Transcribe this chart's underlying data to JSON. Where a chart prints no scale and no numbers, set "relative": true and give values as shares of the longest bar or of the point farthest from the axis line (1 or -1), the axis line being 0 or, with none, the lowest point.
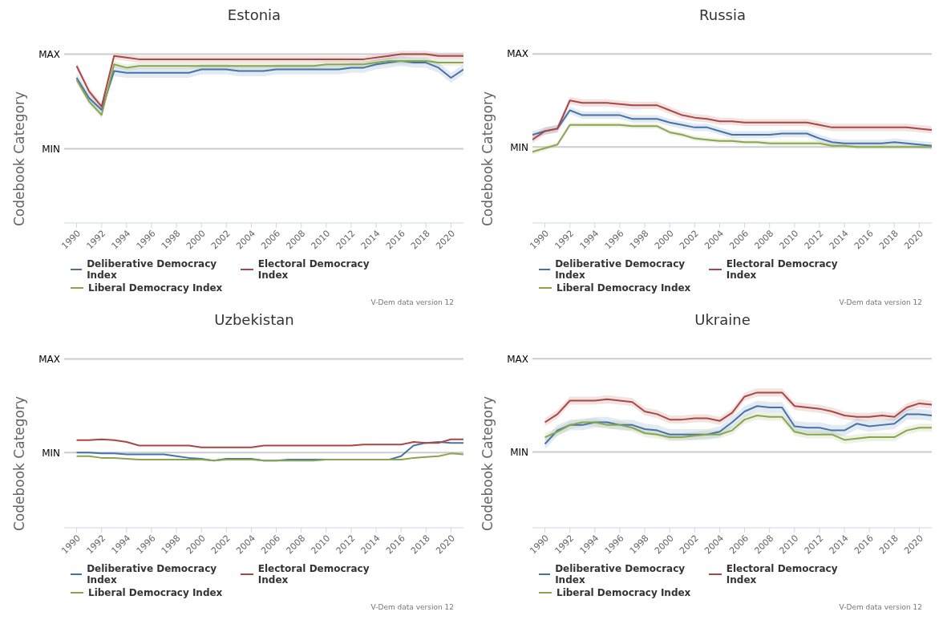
{
  "chart_data": [
    {
      "type": "line",
      "title": "Estonia",
      "ylabel": "Codebook Category",
      "legend": "bottom",
      "relative": true,
      "annotations": [
        "V-Dem data version 12"
      ],
      "xlim": [
        1989,
        2021
      ],
      "xticks": [
        1990,
        1992,
        1994,
        1996,
        1998,
        2000,
        2002,
        2004,
        2006,
        2008,
        2010,
        2012,
        2014,
        2016,
        2018,
        2020
      ],
      "ref_lines": [
        {
          "axis": "y",
          "value": 0.44,
          "label": "MIN",
          "color": "#cccccc"
        },
        {
          "axis": "y",
          "value": 1.0,
          "label": "MAX",
          "color": "#cccccc"
        }
      ],
      "x": [
        1990,
        1991,
        1992,
        1993,
        1994,
        1995,
        1996,
        1997,
        1998,
        1999,
        2000,
        2001,
        2002,
        2003,
        2004,
        2005,
        2006,
        2007,
        2008,
        2009,
        2010,
        2011,
        2012,
        2013,
        2014,
        2015,
        2016,
        2017,
        2018,
        2019,
        2020,
        2021
      ],
      "series": [
        {
          "name": "Deliberative Democracy Index",
          "color": "#4572a7",
          "values": [
            0.86,
            0.74,
            0.67,
            0.9,
            0.89,
            0.89,
            0.89,
            0.89,
            0.89,
            0.89,
            0.91,
            0.91,
            0.91,
            0.9,
            0.9,
            0.9,
            0.91,
            0.91,
            0.91,
            0.91,
            0.91,
            0.91,
            0.92,
            0.92,
            0.94,
            0.95,
            0.96,
            0.95,
            0.95,
            0.92,
            0.86,
            0.91
          ],
          "upper": [
            0.89,
            0.77,
            0.7,
            0.93,
            0.92,
            0.92,
            0.92,
            0.92,
            0.92,
            0.92,
            0.94,
            0.94,
            0.94,
            0.93,
            0.93,
            0.93,
            0.94,
            0.94,
            0.94,
            0.94,
            0.94,
            0.94,
            0.95,
            0.95,
            0.97,
            0.98,
            0.99,
            0.98,
            0.98,
            0.95,
            0.89,
            0.94
          ],
          "lower": [
            0.83,
            0.71,
            0.64,
            0.87,
            0.86,
            0.86,
            0.86,
            0.86,
            0.86,
            0.86,
            0.88,
            0.88,
            0.88,
            0.87,
            0.87,
            0.87,
            0.88,
            0.88,
            0.88,
            0.88,
            0.88,
            0.88,
            0.89,
            0.89,
            0.91,
            0.92,
            0.93,
            0.92,
            0.92,
            0.89,
            0.83,
            0.88
          ]
        },
        {
          "name": "Electoral Democracy Index",
          "color": "#aa4643",
          "values": [
            0.93,
            0.78,
            0.69,
            0.99,
            0.98,
            0.97,
            0.97,
            0.97,
            0.97,
            0.97,
            0.97,
            0.97,
            0.97,
            0.97,
            0.97,
            0.97,
            0.97,
            0.97,
            0.97,
            0.97,
            0.97,
            0.97,
            0.97,
            0.97,
            0.98,
            0.99,
            1,
            1,
            1,
            0.99,
            0.99,
            0.99
          ],
          "upper": [
            0.95,
            0.8,
            0.71,
            1.01,
            1.0,
            0.99,
            0.99,
            0.99,
            0.99,
            0.99,
            0.99,
            0.99,
            0.99,
            0.99,
            0.99,
            0.99,
            0.99,
            0.99,
            0.99,
            0.99,
            0.99,
            0.99,
            0.99,
            0.99,
            1.0,
            1.01,
            1.02,
            1.02,
            1.02,
            1.01,
            1.01,
            1.01
          ],
          "lower": [
            0.91,
            0.76,
            0.67,
            0.97,
            0.96,
            0.95,
            0.95,
            0.95,
            0.95,
            0.95,
            0.95,
            0.95,
            0.95,
            0.95,
            0.95,
            0.95,
            0.95,
            0.95,
            0.95,
            0.95,
            0.95,
            0.95,
            0.95,
            0.95,
            0.96,
            0.97,
            0.98,
            0.98,
            0.98,
            0.97,
            0.97,
            0.97
          ]
        },
        {
          "name": "Liberal Democracy Index",
          "color": "#89a54e",
          "values": [
            0.85,
            0.72,
            0.64,
            0.94,
            0.92,
            0.93,
            0.93,
            0.93,
            0.93,
            0.93,
            0.93,
            0.93,
            0.93,
            0.93,
            0.93,
            0.93,
            0.93,
            0.93,
            0.93,
            0.93,
            0.94,
            0.94,
            0.94,
            0.94,
            0.95,
            0.96,
            0.96,
            0.96,
            0.96,
            0.95,
            0.95,
            0.95
          ],
          "upper": [
            0.87,
            0.74,
            0.66,
            0.96,
            0.94,
            0.95,
            0.95,
            0.95,
            0.95,
            0.95,
            0.95,
            0.95,
            0.95,
            0.95,
            0.95,
            0.95,
            0.95,
            0.95,
            0.95,
            0.95,
            0.96,
            0.96,
            0.96,
            0.96,
            0.97,
            0.98,
            0.98,
            0.98,
            0.98,
            0.97,
            0.97,
            0.97
          ],
          "lower": [
            0.83,
            0.7,
            0.62,
            0.92,
            0.9,
            0.91,
            0.91,
            0.91,
            0.91,
            0.91,
            0.91,
            0.91,
            0.91,
            0.91,
            0.91,
            0.91,
            0.91,
            0.91,
            0.91,
            0.91,
            0.92,
            0.92,
            0.92,
            0.92,
            0.93,
            0.94,
            0.94,
            0.94,
            0.94,
            0.93,
            0.93,
            0.93
          ]
        }
      ]
    },
    {
      "type": "line",
      "title": "Russia",
      "ylabel": "Codebook Category",
      "legend": "bottom",
      "relative": true,
      "annotations": [
        "V-Dem data version 12"
      ],
      "xlim": [
        1989,
        2021
      ],
      "xticks": [
        1990,
        1992,
        1994,
        1996,
        1998,
        2000,
        2002,
        2004,
        2006,
        2008,
        2010,
        2012,
        2014,
        2016,
        2018,
        2020
      ],
      "ref_lines": [
        {
          "axis": "y",
          "value": 0.62,
          "label": "MIN",
          "color": "#cccccc"
        },
        {
          "axis": "y",
          "value": 1.38,
          "label": "MAX",
          "color": "#cccccc"
        }
      ],
      "x": [
        1989,
        1990,
        1991,
        1992,
        1993,
        1994,
        1995,
        1996,
        1997,
        1998,
        1999,
        2000,
        2001,
        2002,
        2003,
        2004,
        2005,
        2006,
        2007,
        2008,
        2009,
        2010,
        2011,
        2012,
        2013,
        2014,
        2015,
        2016,
        2017,
        2018,
        2019,
        2020,
        2021
      ],
      "series": [
        {
          "name": "Deliberative Democracy Index",
          "color": "#4572a7",
          "values": [
            0.72,
            0.75,
            0.77,
            0.92,
            0.88,
            0.88,
            0.88,
            0.88,
            0.85,
            0.85,
            0.85,
            0.82,
            0.8,
            0.78,
            0.78,
            0.75,
            0.72,
            0.72,
            0.72,
            0.72,
            0.73,
            0.73,
            0.73,
            0.69,
            0.66,
            0.65,
            0.65,
            0.65,
            0.65,
            0.66,
            0.65,
            0.64,
            0.63
          ],
          "upper": [
            0.75,
            0.78,
            0.8,
            0.95,
            0.91,
            0.91,
            0.91,
            0.91,
            0.88,
            0.88,
            0.88,
            0.85,
            0.83,
            0.81,
            0.81,
            0.78,
            0.75,
            0.75,
            0.75,
            0.75,
            0.76,
            0.76,
            0.76,
            0.72,
            0.69,
            0.68,
            0.68,
            0.68,
            0.68,
            0.69,
            0.68,
            0.67,
            0.66
          ],
          "lower": [
            0.69,
            0.72,
            0.74,
            0.89,
            0.85,
            0.85,
            0.85,
            0.85,
            0.82,
            0.82,
            0.82,
            0.79,
            0.77,
            0.75,
            0.75,
            0.72,
            0.69,
            0.69,
            0.69,
            0.69,
            0.7,
            0.7,
            0.7,
            0.66,
            0.63,
            0.62,
            0.62,
            0.62,
            0.62,
            0.63,
            0.62,
            0.61,
            0.6
          ]
        },
        {
          "name": "Electoral Democracy Index",
          "color": "#aa4643",
          "values": [
            0.68,
            0.75,
            0.77,
            1,
            0.98,
            0.98,
            0.98,
            0.97,
            0.96,
            0.96,
            0.96,
            0.92,
            0.88,
            0.86,
            0.85,
            0.83,
            0.83,
            0.82,
            0.82,
            0.82,
            0.82,
            0.82,
            0.82,
            0.8,
            0.78,
            0.78,
            0.78,
            0.78,
            0.78,
            0.78,
            0.78,
            0.77,
            0.76
          ],
          "upper": [
            0.71,
            0.78,
            0.8,
            1.03,
            1.01,
            1.01,
            1.01,
            1.0,
            0.99,
            0.99,
            0.99,
            0.95,
            0.91,
            0.89,
            0.88,
            0.86,
            0.86,
            0.85,
            0.85,
            0.85,
            0.85,
            0.85,
            0.85,
            0.83,
            0.81,
            0.81,
            0.81,
            0.81,
            0.81,
            0.81,
            0.81,
            0.8,
            0.79
          ],
          "lower": [
            0.65,
            0.72,
            0.74,
            0.97,
            0.95,
            0.95,
            0.95,
            0.94,
            0.93,
            0.93,
            0.93,
            0.89,
            0.85,
            0.83,
            0.82,
            0.8,
            0.8,
            0.79,
            0.79,
            0.79,
            0.79,
            0.79,
            0.79,
            0.77,
            0.75,
            0.75,
            0.75,
            0.75,
            0.75,
            0.75,
            0.75,
            0.74,
            0.73
          ]
        },
        {
          "name": "Liberal Democracy Index",
          "color": "#89a54e",
          "values": [
            0.58,
            0.61,
            0.64,
            0.8,
            0.8,
            0.8,
            0.8,
            0.8,
            0.79,
            0.79,
            0.79,
            0.74,
            0.72,
            0.69,
            0.68,
            0.67,
            0.67,
            0.66,
            0.66,
            0.65,
            0.65,
            0.65,
            0.65,
            0.65,
            0.63,
            0.63,
            0.62,
            0.62,
            0.62,
            0.62,
            0.62,
            0.62,
            0.62
          ],
          "upper": [
            0.6,
            0.63,
            0.66,
            0.82,
            0.82,
            0.82,
            0.82,
            0.82,
            0.81,
            0.81,
            0.81,
            0.76,
            0.74,
            0.71,
            0.7,
            0.69,
            0.69,
            0.68,
            0.68,
            0.67,
            0.67,
            0.67,
            0.67,
            0.67,
            0.65,
            0.65,
            0.64,
            0.64,
            0.64,
            0.64,
            0.64,
            0.64,
            0.64
          ],
          "lower": [
            0.56,
            0.59,
            0.62,
            0.78,
            0.78,
            0.78,
            0.78,
            0.78,
            0.77,
            0.77,
            0.77,
            0.72,
            0.7,
            0.67,
            0.66,
            0.65,
            0.65,
            0.64,
            0.64,
            0.63,
            0.63,
            0.63,
            0.63,
            0.63,
            0.61,
            0.61,
            0.6,
            0.6,
            0.6,
            0.6,
            0.6,
            0.6,
            0.6
          ]
        }
      ]
    },
    {
      "type": "line",
      "title": "Uzbekistan",
      "ylabel": "Codebook Category",
      "legend": "bottom",
      "relative": true,
      "annotations": [
        "V-Dem data version 12"
      ],
      "xlim": [
        1989,
        2021
      ],
      "xticks": [
        1990,
        1992,
        1994,
        1996,
        1998,
        2000,
        2002,
        2004,
        2006,
        2008,
        2010,
        2012,
        2014,
        2016,
        2018,
        2020
      ],
      "ref_lines": [
        {
          "axis": "y",
          "value": 0.85,
          "label": "MIN",
          "color": "#cccccc"
        },
        {
          "axis": "y",
          "value": 1.91,
          "label": "MAX",
          "color": "#cccccc"
        }
      ],
      "x": [
        1990,
        1991,
        1992,
        1993,
        1994,
        1995,
        1996,
        1997,
        1998,
        1999,
        2000,
        2001,
        2002,
        2003,
        2004,
        2005,
        2006,
        2007,
        2008,
        2009,
        2010,
        2011,
        2012,
        2013,
        2014,
        2015,
        2016,
        2017,
        2018,
        2019,
        2020,
        2021
      ],
      "series": [
        {
          "name": "Deliberative Democracy Index",
          "color": "#4572a7",
          "values": [
            0.85,
            0.85,
            0.84,
            0.84,
            0.83,
            0.83,
            0.83,
            0.83,
            0.81,
            0.79,
            0.78,
            0.76,
            0.78,
            0.78,
            0.78,
            0.76,
            0.76,
            0.77,
            0.77,
            0.77,
            0.77,
            0.77,
            0.77,
            0.77,
            0.77,
            0.77,
            0.81,
            0.93,
            0.96,
            0.97,
            0.96,
            0.96
          ]
        },
        {
          "name": "Electoral Democracy Index",
          "color": "#aa4643",
          "values": [
            0.99,
            0.99,
            1,
            0.99,
            0.97,
            0.93,
            0.93,
            0.93,
            0.93,
            0.93,
            0.91,
            0.91,
            0.91,
            0.91,
            0.91,
            0.93,
            0.93,
            0.93,
            0.93,
            0.93,
            0.93,
            0.93,
            0.93,
            0.94,
            0.94,
            0.94,
            0.94,
            0.97,
            0.96,
            0.96,
            1,
            1
          ]
        },
        {
          "name": "Liberal Democracy Index",
          "color": "#89a54e",
          "values": [
            0.81,
            0.81,
            0.79,
            0.79,
            0.78,
            0.77,
            0.77,
            0.77,
            0.77,
            0.77,
            0.77,
            0.76,
            0.77,
            0.77,
            0.77,
            0.76,
            0.76,
            0.76,
            0.76,
            0.76,
            0.77,
            0.77,
            0.77,
            0.77,
            0.77,
            0.77,
            0.77,
            0.79,
            0.8,
            0.81,
            0.84,
            0.83
          ]
        }
      ]
    },
    {
      "type": "line",
      "title": "Ukraine",
      "ylabel": "Codebook Category",
      "legend": "bottom",
      "relative": true,
      "annotations": [
        "V-Dem data version 12"
      ],
      "xlim": [
        1989,
        2021
      ],
      "xticks": [
        1990,
        1992,
        1994,
        1996,
        1998,
        2000,
        2002,
        2004,
        2006,
        2008,
        2010,
        2012,
        2014,
        2016,
        2018,
        2020
      ],
      "ref_lines": [
        {
          "axis": "y",
          "value": 0.56,
          "label": "MIN",
          "color": "#cccccc"
        },
        {
          "axis": "y",
          "value": 1.25,
          "label": "MAX",
          "color": "#cccccc"
        }
      ],
      "x": [
        1990,
        1991,
        1992,
        1993,
        1994,
        1995,
        1996,
        1997,
        1998,
        1999,
        2000,
        2001,
        2002,
        2003,
        2004,
        2005,
        2006,
        2007,
        2008,
        2009,
        2010,
        2011,
        2012,
        2013,
        2014,
        2015,
        2016,
        2017,
        2018,
        2019,
        2020,
        2021
      ],
      "series": [
        {
          "name": "Deliberative Democracy Index",
          "color": "#4572a7",
          "values": [
            0.62,
            0.72,
            0.76,
            0.76,
            0.78,
            0.78,
            0.76,
            0.76,
            0.73,
            0.72,
            0.69,
            0.69,
            0.69,
            0.69,
            0.71,
            0.78,
            0.86,
            0.9,
            0.89,
            0.89,
            0.75,
            0.74,
            0.74,
            0.72,
            0.72,
            0.77,
            0.75,
            0.76,
            0.77,
            0.84,
            0.84,
            0.83
          ],
          "upper": [
            0.66,
            0.76,
            0.8,
            0.8,
            0.82,
            0.82,
            0.8,
            0.8,
            0.77,
            0.76,
            0.73,
            0.73,
            0.73,
            0.73,
            0.75,
            0.82,
            0.9,
            0.94,
            0.93,
            0.93,
            0.79,
            0.78,
            0.78,
            0.76,
            0.76,
            0.81,
            0.79,
            0.8,
            0.81,
            0.88,
            0.88,
            0.87
          ],
          "lower": [
            0.58,
            0.68,
            0.72,
            0.72,
            0.74,
            0.74,
            0.72,
            0.72,
            0.69,
            0.68,
            0.65,
            0.65,
            0.65,
            0.65,
            0.67,
            0.74,
            0.82,
            0.86,
            0.85,
            0.85,
            0.71,
            0.7,
            0.7,
            0.68,
            0.68,
            0.73,
            0.71,
            0.72,
            0.73,
            0.8,
            0.8,
            0.79
          ]
        },
        {
          "name": "Electoral Democracy Index",
          "color": "#aa4643",
          "values": [
            0.78,
            0.84,
            0.94,
            0.94,
            0.94,
            0.95,
            0.94,
            0.93,
            0.86,
            0.84,
            0.8,
            0.8,
            0.81,
            0.81,
            0.79,
            0.85,
            0.97,
            1,
            1,
            1,
            0.9,
            0.89,
            0.88,
            0.86,
            0.83,
            0.82,
            0.82,
            0.83,
            0.82,
            0.89,
            0.92,
            0.91
          ],
          "upper": [
            0.81,
            0.87,
            0.97,
            0.97,
            0.97,
            0.98,
            0.97,
            0.96,
            0.89,
            0.87,
            0.83,
            0.83,
            0.84,
            0.84,
            0.82,
            0.88,
            1.0,
            1.03,
            1.03,
            1.03,
            0.93,
            0.92,
            0.91,
            0.89,
            0.86,
            0.85,
            0.85,
            0.86,
            0.85,
            0.92,
            0.95,
            0.94
          ],
          "lower": [
            0.75,
            0.81,
            0.91,
            0.91,
            0.91,
            0.92,
            0.91,
            0.9,
            0.83,
            0.81,
            0.77,
            0.77,
            0.78,
            0.78,
            0.76,
            0.82,
            0.94,
            0.97,
            0.97,
            0.97,
            0.87,
            0.86,
            0.85,
            0.83,
            0.8,
            0.79,
            0.79,
            0.8,
            0.79,
            0.86,
            0.89,
            0.88
          ]
        },
        {
          "name": "Liberal Democracy Index",
          "color": "#89a54e",
          "values": [
            0.67,
            0.71,
            0.76,
            0.78,
            0.78,
            0.76,
            0.76,
            0.74,
            0.7,
            0.69,
            0.67,
            0.67,
            0.68,
            0.69,
            0.69,
            0.72,
            0.8,
            0.83,
            0.82,
            0.82,
            0.71,
            0.69,
            0.69,
            0.69,
            0.65,
            0.66,
            0.67,
            0.67,
            0.67,
            0.72,
            0.74,
            0.74
          ],
          "upper": [
            0.7,
            0.74,
            0.79,
            0.81,
            0.81,
            0.79,
            0.79,
            0.77,
            0.73,
            0.72,
            0.7,
            0.7,
            0.71,
            0.72,
            0.72,
            0.75,
            0.83,
            0.86,
            0.85,
            0.85,
            0.74,
            0.72,
            0.72,
            0.72,
            0.68,
            0.69,
            0.7,
            0.7,
            0.7,
            0.75,
            0.77,
            0.77
          ],
          "lower": [
            0.64,
            0.68,
            0.73,
            0.75,
            0.75,
            0.73,
            0.73,
            0.71,
            0.67,
            0.66,
            0.64,
            0.64,
            0.65,
            0.66,
            0.66,
            0.69,
            0.77,
            0.8,
            0.79,
            0.79,
            0.68,
            0.66,
            0.66,
            0.66,
            0.62,
            0.63,
            0.64,
            0.64,
            0.64,
            0.69,
            0.71,
            0.71
          ]
        }
      ]
    }
  ]
}
